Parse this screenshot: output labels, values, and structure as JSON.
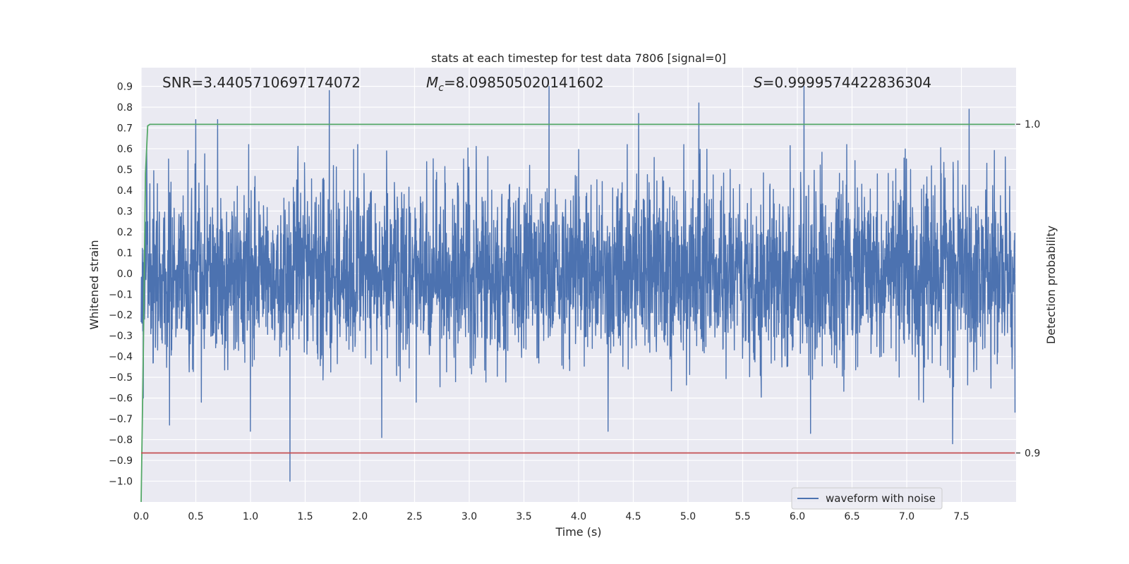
{
  "chart_data": {
    "type": "line",
    "title": "stats at each timestep for test data 7806 [signal=0]",
    "xlabel": "Time (s)",
    "ylabel": "Whitened strain",
    "ylabel_right": "Detection probability",
    "xlim": [
      0.0,
      8.0
    ],
    "ylim": [
      -1.1,
      0.99
    ],
    "ylim_right": [
      0.8851,
      1.0172
    ],
    "xticks": [
      "0.0",
      "0.5",
      "1.0",
      "1.5",
      "2.0",
      "2.5",
      "3.0",
      "3.5",
      "4.0",
      "4.5",
      "5.0",
      "5.5",
      "6.0",
      "6.5",
      "7.0",
      "7.5"
    ],
    "yticks": [
      "0.9",
      "0.8",
      "0.7",
      "0.6",
      "0.5",
      "0.4",
      "0.3",
      "0.2",
      "0.1",
      "0.0",
      "−0.1",
      "−0.2",
      "−0.3",
      "−0.4",
      "−0.5",
      "−0.6",
      "−0.7",
      "−0.8",
      "−0.9",
      "−1.0"
    ],
    "yticks_right": [
      "1.0",
      "0.9"
    ],
    "grid": true,
    "background": "#eaeaf2",
    "legend": {
      "placement": "lower-right",
      "entries": [
        "waveform with noise"
      ]
    },
    "annotations": {
      "snr": "SNR=3.4405710697174072",
      "mc_symbol": "M",
      "mc_sub": "c",
      "mc_value": "=8.098505020141602",
      "s_symbol": "S",
      "s_value": "=0.9999574422836304"
    },
    "series": [
      {
        "name": "waveform with noise",
        "axis": "left",
        "color": "#4c72b0",
        "description": "noisy whitened strain, approx. uniform amplitude",
        "n_points": 3600,
        "x_range": [
          0.0,
          7.99
        ],
        "typical_range": [
          -0.45,
          0.45
        ],
        "spikes": [
          {
            "x": 0.02,
            "y": 0.72
          },
          {
            "x": 0.05,
            "y": 0.6
          },
          {
            "x": 0.02,
            "y": -0.6
          },
          {
            "x": 0.26,
            "y": -0.73
          },
          {
            "x": 0.5,
            "y": 0.74
          },
          {
            "x": 0.7,
            "y": 0.74
          },
          {
            "x": 1.0,
            "y": -0.76
          },
          {
            "x": 1.36,
            "y": -1.0
          },
          {
            "x": 1.72,
            "y": 0.88
          },
          {
            "x": 2.2,
            "y": -0.79
          },
          {
            "x": 3.73,
            "y": 0.9
          },
          {
            "x": 4.27,
            "y": -0.76
          },
          {
            "x": 4.55,
            "y": 0.77
          },
          {
            "x": 5.1,
            "y": 0.82
          },
          {
            "x": 6.06,
            "y": 0.9
          },
          {
            "x": 6.12,
            "y": -0.77
          },
          {
            "x": 7.42,
            "y": -0.82
          },
          {
            "x": 7.57,
            "y": 0.79
          },
          {
            "x": 7.99,
            "y": -0.67
          }
        ]
      },
      {
        "name": "",
        "axis": "right",
        "color": "#55a868",
        "x": [
          0.0,
          0.02,
          0.04,
          0.06,
          0.08,
          0.12,
          7.99
        ],
        "values": [
          0.8851,
          0.93,
          0.985,
          0.9995,
          0.99996,
          0.99996,
          0.99996
        ]
      },
      {
        "name": "",
        "axis": "right",
        "color": "#c44e52",
        "x": [
          0.0,
          7.99
        ],
        "values": [
          0.9,
          0.9
        ]
      }
    ]
  }
}
